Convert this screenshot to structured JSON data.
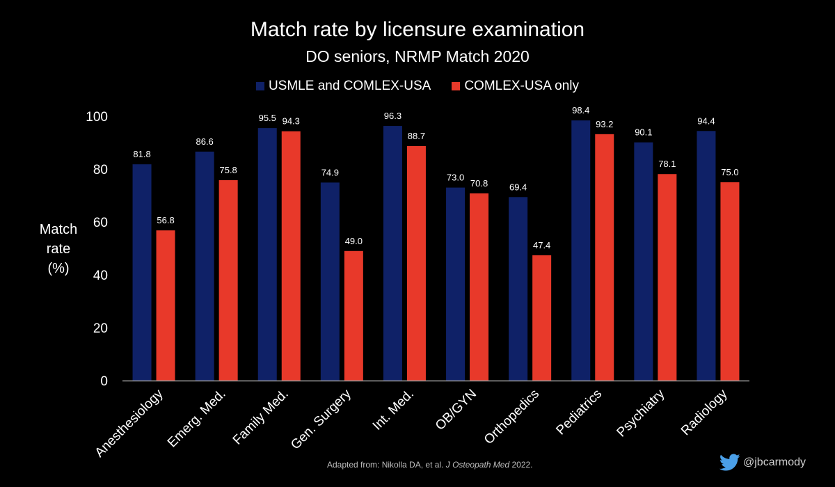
{
  "colors": {
    "usmle": "#0f2167",
    "comlex": "#e8392a",
    "background": "#000000",
    "axis": "#9a9a9a",
    "twitter": "#4a9fe8"
  },
  "chart_data": {
    "type": "bar",
    "title": "Match rate by licensure examination",
    "subtitle": "DO seniors, NRMP Match 2020",
    "xlabel": "",
    "ylabel_lines": [
      "Match",
      "rate",
      "(%)"
    ],
    "ylim": [
      0,
      100
    ],
    "yticks": [
      0,
      20,
      40,
      60,
      80,
      100
    ],
    "grid": false,
    "legend_position": "top-center",
    "categories": [
      "Anesthesiology",
      "Emerg. Med.",
      "Family Med.",
      "Gen. Surgery",
      "Int. Med.",
      "OB/GYN",
      "Orthopedics",
      "Pediatrics",
      "Psychiatry",
      "Radiology"
    ],
    "series": [
      {
        "name": "USMLE and COMLEX-USA",
        "color_key": "usmle",
        "values": [
          81.8,
          86.6,
          95.5,
          74.9,
          96.3,
          73.0,
          69.4,
          98.4,
          90.1,
          94.4
        ],
        "labels": [
          "81.8",
          "86.6",
          "95.5",
          "74.9",
          "96.3",
          "73.0",
          "69.4",
          "98.4",
          "90.1",
          "94.4"
        ]
      },
      {
        "name": "COMLEX-USA only",
        "color_key": "comlex",
        "values": [
          56.8,
          75.8,
          94.3,
          49.0,
          88.7,
          70.8,
          47.4,
          93.2,
          78.1,
          75.0
        ],
        "labels": [
          "56.8",
          "75.8",
          "94.3",
          "49.0",
          "88.7",
          "70.8",
          "47.4",
          "93.2",
          "78.1",
          "75.0"
        ]
      }
    ]
  },
  "footer": {
    "prefix": "Adapted from: Nikolla DA, et al. ",
    "journal": "J Osteopath Med",
    "year": " 2022."
  },
  "handle": {
    "icon": "twitter-bird-icon",
    "text": "@jbcarmody"
  }
}
